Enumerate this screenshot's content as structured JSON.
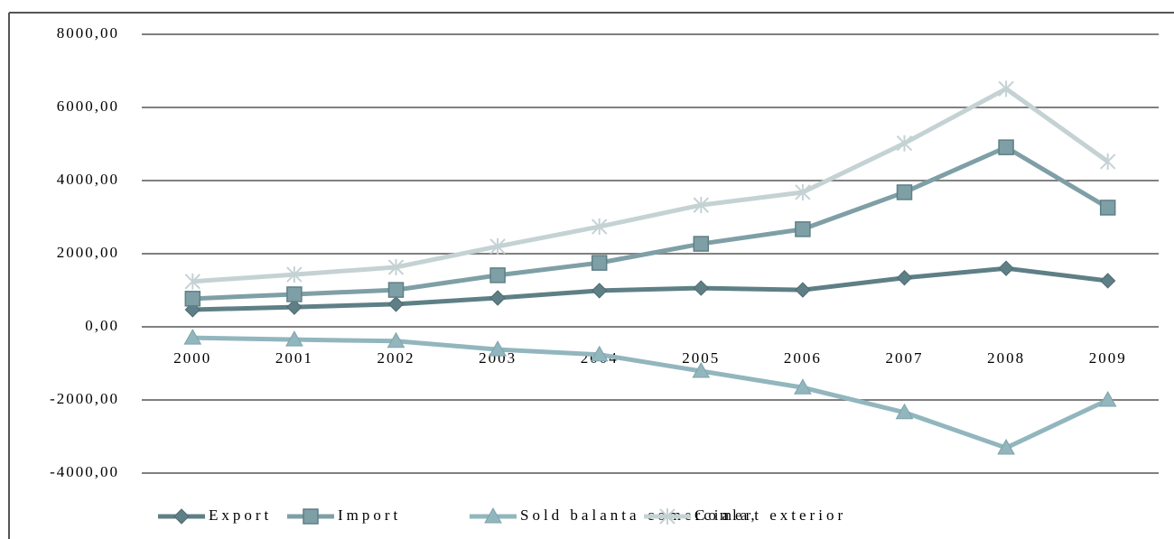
{
  "chart_data": {
    "type": "line",
    "categories": [
      "2000",
      "2001",
      "2002",
      "2003",
      "2004",
      "2005",
      "2006",
      "2007",
      "2008",
      "2009"
    ],
    "series": [
      {
        "name": "Export",
        "color": "#5f7f86",
        "marker": "diamond",
        "values": [
          470,
          540,
          620,
          790,
          990,
          1060,
          1010,
          1340,
          1600,
          1260
        ]
      },
      {
        "name": "Import",
        "color": "#7f9fa6",
        "marker": "square",
        "values": [
          770,
          890,
          1010,
          1410,
          1750,
          2270,
          2670,
          3680,
          4910,
          3260
        ]
      },
      {
        "name": "Sold balanta comerciala,",
        "color": "#92b6bd",
        "marker": "triangle",
        "values": [
          -300,
          -350,
          -390,
          -620,
          -760,
          -1210,
          -1660,
          -2340,
          -3310,
          -2000
        ]
      },
      {
        "name": "Comert exterior",
        "color": "#c5d2d4",
        "marker": "asterisk",
        "values": [
          1240,
          1430,
          1630,
          2200,
          2740,
          3330,
          3680,
          5020,
          6510,
          4520
        ]
      }
    ],
    "ylim": [
      -4000,
      8000
    ],
    "yticks": [
      {
        "value": -4000,
        "label": "-4000,00"
      },
      {
        "value": -2000,
        "label": "-2000,00"
      },
      {
        "value": 0,
        "label": "0,00"
      },
      {
        "value": 2000,
        "label": "2000,00"
      },
      {
        "value": 4000,
        "label": "4000,00"
      },
      {
        "value": 6000,
        "label": "6000,00"
      },
      {
        "value": 8000,
        "label": "8000,00"
      }
    ],
    "grid": true,
    "legend": "bottom"
  }
}
